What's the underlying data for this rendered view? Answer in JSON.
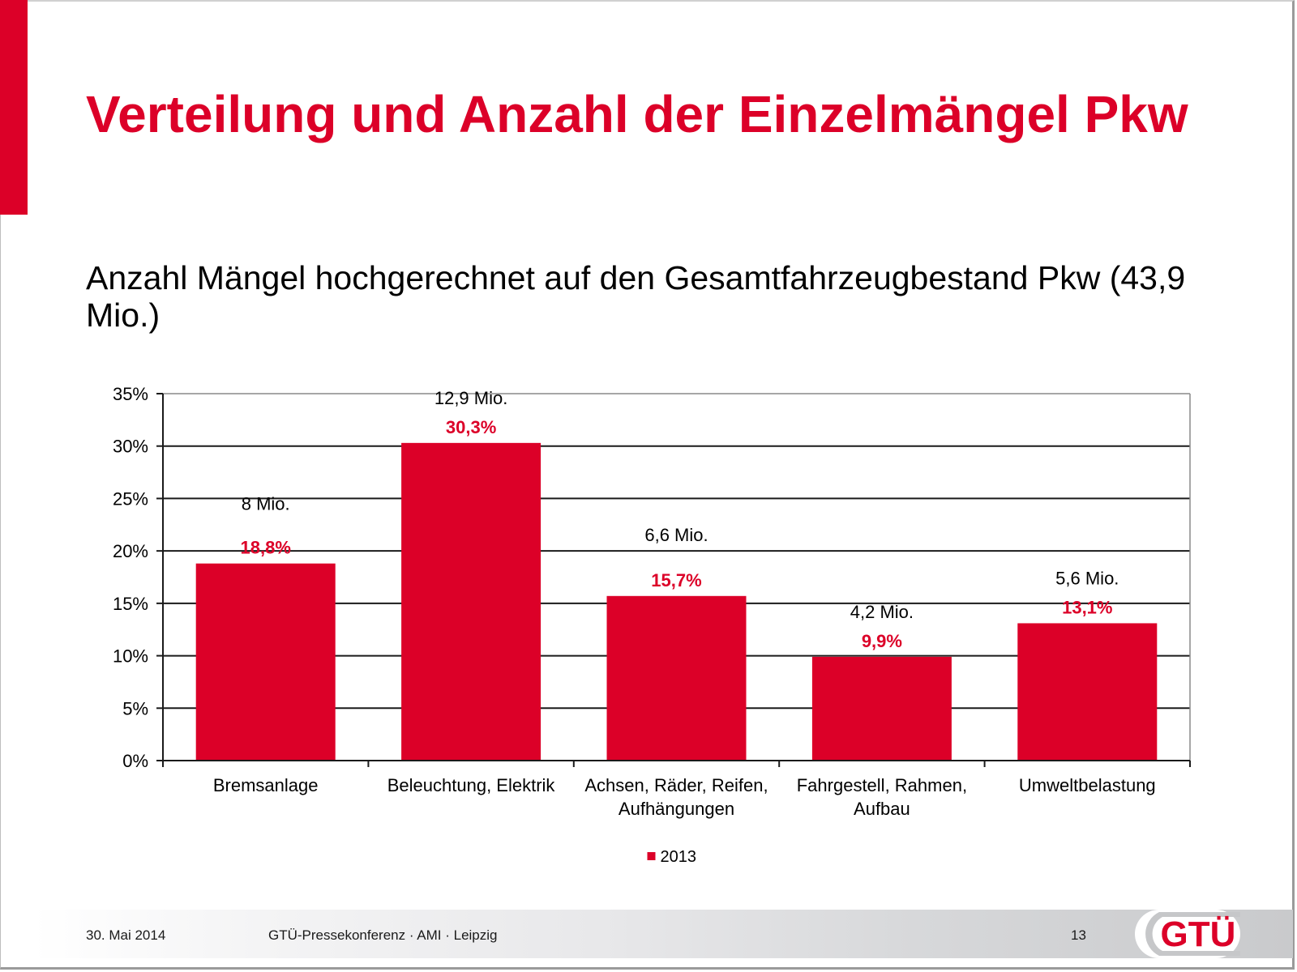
{
  "slide": {
    "title": "Verteilung und Anzahl der Einzelmängel Pkw",
    "subtitle": "Anzahl Mängel hochgerechnet auf den Gesamtfahrzeugbestand Pkw (43,9 Mio.)",
    "accent_color": "#dc0028"
  },
  "footer": {
    "date": "30. Mai 2014",
    "event": "GTÜ-Pressekonferenz · AMI · Leipzig",
    "page_number": "13",
    "logo_text": "GTÜ"
  },
  "chart_data": {
    "type": "bar",
    "title": "",
    "xlabel": "",
    "ylabel": "",
    "categories": [
      "Bremsanlage",
      "Beleuchtung, Elektrik",
      "Achsen, Räder, Reifen, Aufhängungen",
      "Fahrgestell, Rahmen, Aufbau",
      "Umweltbelastung"
    ],
    "category_lines": [
      [
        "Bremsanlage"
      ],
      [
        "Beleuchtung, Elektrik"
      ],
      [
        "Achsen, Räder, Reifen,",
        "Aufhängungen"
      ],
      [
        "Fahrgestell, Rahmen,",
        "Aufbau"
      ],
      [
        "Umweltbelastung"
      ]
    ],
    "series": [
      {
        "name": "2013",
        "color": "#dc0028",
        "values": [
          18.8,
          30.3,
          15.7,
          9.9,
          13.1
        ],
        "value_labels": [
          "18,8%",
          "30,3%",
          "15,7%",
          "9,9%",
          "13,1%"
        ],
        "count_labels": [
          "8 Mio.",
          "12,9 Mio.",
          "6,6 Mio.",
          "4,2 Mio.",
          "5,6 Mio."
        ]
      }
    ],
    "ylim": [
      0,
      35
    ],
    "yticks": [
      0,
      5,
      10,
      15,
      20,
      25,
      30,
      35
    ],
    "ytick_labels": [
      "0%",
      "5%",
      "10%",
      "15%",
      "20%",
      "25%",
      "30%",
      "35%"
    ],
    "grid": true,
    "legend": {
      "position": "bottom",
      "entries": [
        "2013"
      ]
    }
  }
}
